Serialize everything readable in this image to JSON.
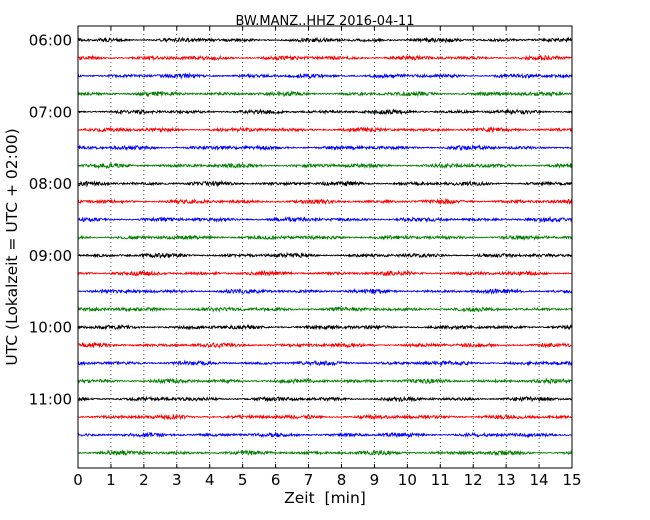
{
  "chart_data": {
    "type": "line",
    "title": "BW.MANZ..HHZ 2016-04-11",
    "xlabel": "Zeit  [min]",
    "ylabel": "UTC (Lokalzeit = UTC + 02:00)",
    "xlim": [
      0,
      15
    ],
    "x_ticks": [
      "0",
      "1",
      "2",
      "3",
      "4",
      "5",
      "6",
      "7",
      "8",
      "9",
      "10",
      "11",
      "12",
      "13",
      "14",
      "15"
    ],
    "y_ticks": [
      "06:00",
      "07:00",
      "08:00",
      "09:00",
      "10:00",
      "11:00"
    ],
    "grid": "vertical dotted at each minute",
    "traces_per_hour": 4,
    "trace_minutes": 15,
    "colors": [
      "#000000",
      "#ff0000",
      "#0000ff",
      "#008000"
    ],
    "series": [
      {
        "start": "06:00"
      },
      {
        "start": "06:15"
      },
      {
        "start": "06:30"
      },
      {
        "start": "06:45"
      },
      {
        "start": "07:00"
      },
      {
        "start": "07:15"
      },
      {
        "start": "07:30"
      },
      {
        "start": "07:45"
      },
      {
        "start": "08:00"
      },
      {
        "start": "08:15"
      },
      {
        "start": "08:30"
      },
      {
        "start": "08:45"
      },
      {
        "start": "09:00"
      },
      {
        "start": "09:15"
      },
      {
        "start": "09:30"
      },
      {
        "start": "09:45"
      },
      {
        "start": "10:00"
      },
      {
        "start": "10:15"
      },
      {
        "start": "10:30"
      },
      {
        "start": "10:45"
      },
      {
        "start": "11:00"
      },
      {
        "start": "11:15"
      },
      {
        "start": "11:30"
      },
      {
        "start": "11:45"
      }
    ]
  }
}
